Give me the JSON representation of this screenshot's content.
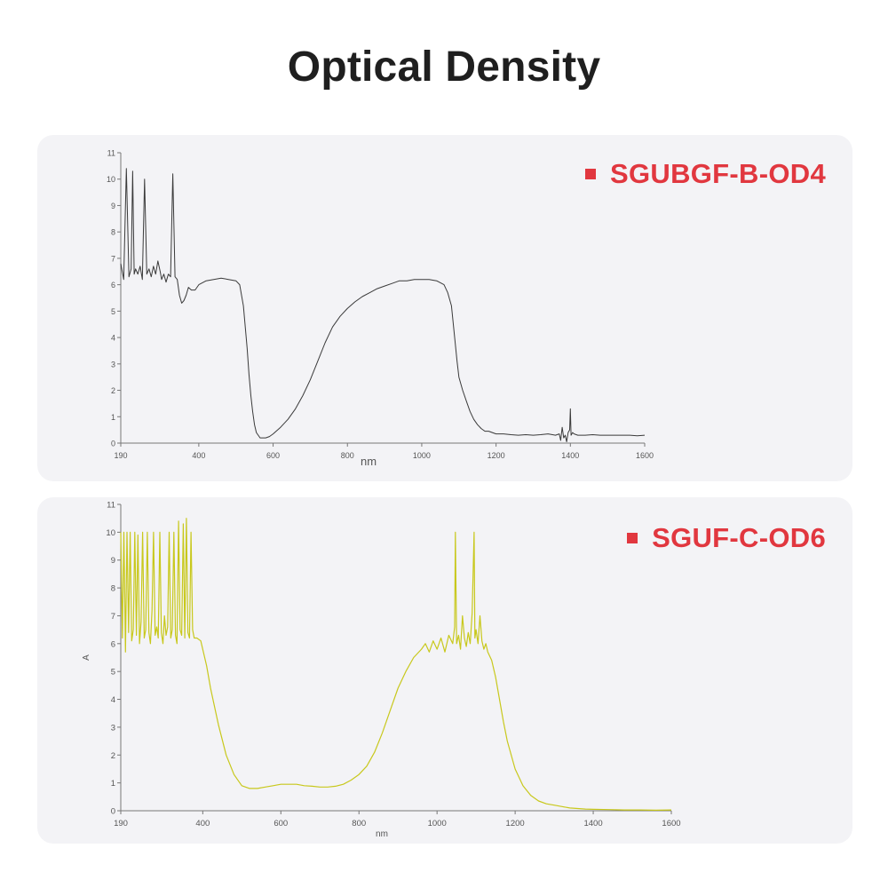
{
  "page": {
    "title": "Optical Density"
  },
  "chart_data": [
    {
      "type": "line",
      "legend": "SGUBGF-B-OD4",
      "xlabel": "nm",
      "ylabel": "",
      "xlim": [
        190,
        1600
      ],
      "ylim": [
        0,
        11
      ],
      "xticks": [
        "190",
        "400",
        "600",
        "800",
        "1000",
        "1200",
        "1400",
        "1600"
      ],
      "yticks": [
        "0",
        "1",
        "2",
        "3",
        "4",
        "5",
        "6",
        "7",
        "8",
        "9",
        "10",
        "11"
      ],
      "colors": {
        "line": "#3a3a3a",
        "accent": "#e1373f"
      },
      "series": [
        {
          "x": [
            190,
            198,
            205,
            212,
            218,
            222,
            226,
            230,
            236,
            242,
            248,
            254,
            260,
            266,
            272,
            278,
            284,
            290,
            296,
            300,
            306,
            312,
            318,
            324,
            330,
            336,
            342,
            348,
            354,
            360,
            366,
            372,
            380,
            390,
            400,
            420,
            440,
            460,
            480,
            500,
            510,
            520,
            530,
            535,
            540,
            545,
            550,
            555,
            560,
            565,
            570,
            580,
            590,
            600,
            620,
            640,
            660,
            680,
            700,
            720,
            740,
            760,
            780,
            800,
            820,
            840,
            860,
            880,
            900,
            920,
            940,
            960,
            980,
            1000,
            1020,
            1040,
            1060,
            1070,
            1080,
            1085,
            1090,
            1095,
            1100,
            1110,
            1120,
            1130,
            1140,
            1150,
            1160,
            1170,
            1180,
            1190,
            1200,
            1220,
            1240,
            1260,
            1280,
            1300,
            1320,
            1340,
            1360,
            1370,
            1374,
            1378,
            1382,
            1386,
            1390,
            1394,
            1398,
            1400,
            1402,
            1406,
            1410,
            1420,
            1440,
            1460,
            1480,
            1500,
            1520,
            1540,
            1560,
            1580,
            1600
          ],
          "y": [
            6.8,
            6.2,
            10.4,
            6.3,
            6.6,
            10.3,
            6.4,
            6.6,
            6.4,
            6.7,
            6.2,
            10.0,
            6.4,
            6.6,
            6.3,
            6.7,
            6.4,
            6.9,
            6.5,
            6.2,
            6.4,
            6.1,
            6.4,
            6.3,
            10.2,
            6.3,
            6.2,
            5.6,
            5.3,
            5.4,
            5.6,
            5.9,
            5.8,
            5.8,
            6.0,
            6.15,
            6.2,
            6.25,
            6.2,
            6.15,
            6.0,
            5.2,
            3.6,
            2.6,
            1.8,
            1.2,
            0.7,
            0.4,
            0.3,
            0.2,
            0.2,
            0.2,
            0.25,
            0.35,
            0.6,
            0.9,
            1.3,
            1.8,
            2.4,
            3.1,
            3.8,
            4.4,
            4.8,
            5.1,
            5.35,
            5.55,
            5.7,
            5.85,
            5.95,
            6.05,
            6.15,
            6.15,
            6.2,
            6.2,
            6.2,
            6.15,
            6.0,
            5.7,
            5.2,
            4.5,
            3.8,
            3.1,
            2.5,
            2.0,
            1.6,
            1.2,
            0.9,
            0.7,
            0.55,
            0.45,
            0.45,
            0.4,
            0.35,
            0.35,
            0.32,
            0.3,
            0.32,
            0.3,
            0.32,
            0.35,
            0.3,
            0.35,
            0.1,
            0.6,
            0.2,
            0.3,
            0.05,
            0.4,
            0.5,
            1.3,
            0.3,
            0.4,
            0.35,
            0.3,
            0.3,
            0.32,
            0.3,
            0.3,
            0.3,
            0.3,
            0.3,
            0.28,
            0.3
          ]
        }
      ]
    },
    {
      "type": "line",
      "legend": "SGUF-C-OD6",
      "xlabel": "nm",
      "ylabel": "A",
      "xlim": [
        190,
        1600
      ],
      "ylim": [
        0,
        11
      ],
      "xticks": [
        "190",
        "400",
        "600",
        "800",
        "1000",
        "1200",
        "1400",
        "1600"
      ],
      "yticks": [
        "0",
        "1",
        "2",
        "3",
        "4",
        "5",
        "6",
        "7",
        "8",
        "9",
        "10",
        "11"
      ],
      "colors": {
        "line": "#c8c81c",
        "accent": "#e1373f"
      },
      "series": [
        {
          "x": [
            190,
            194,
            198,
            202,
            206,
            210,
            214,
            218,
            222,
            226,
            230,
            234,
            238,
            242,
            246,
            250,
            254,
            258,
            262,
            266,
            270,
            274,
            278,
            282,
            286,
            290,
            294,
            298,
            302,
            306,
            310,
            314,
            318,
            322,
            326,
            330,
            334,
            338,
            342,
            346,
            350,
            354,
            358,
            362,
            366,
            370,
            374,
            378,
            385,
            395,
            400,
            410,
            420,
            440,
            460,
            480,
            500,
            520,
            540,
            560,
            580,
            600,
            620,
            640,
            660,
            680,
            700,
            720,
            740,
            760,
            780,
            800,
            820,
            840,
            860,
            880,
            900,
            920,
            940,
            960,
            970,
            980,
            990,
            1000,
            1010,
            1020,
            1030,
            1040,
            1045,
            1047,
            1050,
            1055,
            1060,
            1065,
            1070,
            1075,
            1080,
            1085,
            1090,
            1095,
            1097,
            1100,
            1105,
            1110,
            1115,
            1120,
            1125,
            1130,
            1140,
            1150,
            1160,
            1170,
            1180,
            1200,
            1220,
            1240,
            1260,
            1280,
            1300,
            1320,
            1340,
            1360,
            1380,
            1400,
            1440,
            1480,
            1520,
            1560,
            1600
          ],
          "y": [
            10.0,
            6.2,
            10.0,
            5.7,
            10.0,
            6.4,
            10.0,
            6.1,
            6.5,
            10.0,
            6.3,
            9.9,
            6.0,
            6.8,
            10.0,
            6.2,
            6.5,
            10.0,
            6.4,
            6.0,
            7.2,
            10.0,
            6.3,
            6.6,
            6.2,
            10.0,
            6.4,
            6.0,
            7.0,
            6.3,
            6.6,
            10.0,
            6.2,
            6.5,
            10.0,
            6.3,
            6.0,
            10.4,
            6.5,
            6.3,
            10.3,
            6.2,
            10.5,
            6.4,
            6.2,
            10.0,
            6.5,
            6.2,
            6.2,
            6.1,
            5.8,
            5.2,
            4.4,
            3.1,
            2.0,
            1.3,
            0.9,
            0.8,
            0.8,
            0.85,
            0.9,
            0.95,
            0.95,
            0.95,
            0.9,
            0.88,
            0.85,
            0.85,
            0.88,
            0.95,
            1.1,
            1.3,
            1.6,
            2.1,
            2.8,
            3.6,
            4.4,
            5.0,
            5.5,
            5.8,
            6.0,
            5.7,
            6.1,
            5.8,
            6.2,
            5.7,
            6.3,
            6.0,
            6.6,
            10.0,
            6.0,
            6.3,
            5.8,
            7.0,
            6.2,
            5.9,
            6.4,
            6.0,
            7.1,
            10.0,
            6.2,
            6.5,
            6.0,
            7.0,
            6.1,
            5.8,
            6.0,
            5.7,
            5.4,
            4.8,
            4.0,
            3.2,
            2.5,
            1.5,
            0.9,
            0.55,
            0.35,
            0.25,
            0.2,
            0.15,
            0.1,
            0.08,
            0.06,
            0.05,
            0.04,
            0.03,
            0.03,
            0.02,
            0.03
          ]
        }
      ]
    }
  ]
}
